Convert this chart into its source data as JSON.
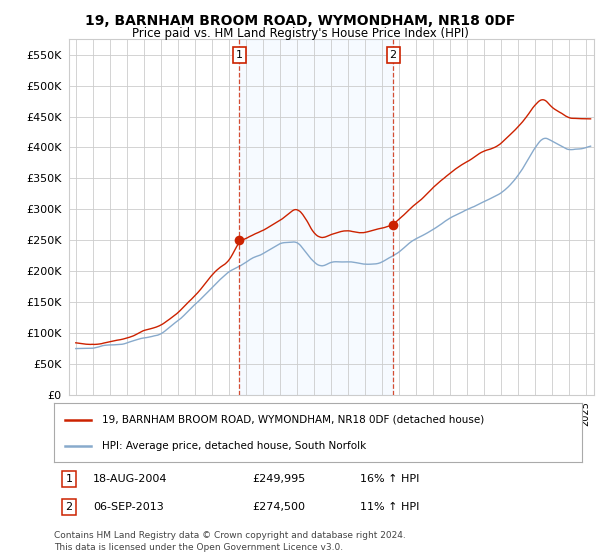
{
  "title": "19, BARNHAM BROOM ROAD, WYMONDHAM, NR18 0DF",
  "subtitle": "Price paid vs. HM Land Registry's House Price Index (HPI)",
  "ylim": [
    0,
    575000
  ],
  "xlim_start": 1994.6,
  "xlim_end": 2025.5,
  "legend_line1": "19, BARNHAM BROOM ROAD, WYMONDHAM, NR18 0DF (detached house)",
  "legend_line2": "HPI: Average price, detached house, South Norfolk",
  "annotation1_label": "1",
  "annotation1_date": "18-AUG-2004",
  "annotation1_price": "£249,995",
  "annotation1_hpi": "16% ↑ HPI",
  "annotation2_label": "2",
  "annotation2_date": "06-SEP-2013",
  "annotation2_price": "£274,500",
  "annotation2_hpi": "11% ↑ HPI",
  "footnote1": "Contains HM Land Registry data © Crown copyright and database right 2024.",
  "footnote2": "This data is licensed under the Open Government Licence v3.0.",
  "sale1_x": 2004.62,
  "sale1_y": 249995,
  "sale2_x": 2013.68,
  "sale2_y": 274500,
  "red_color": "#cc2200",
  "blue_color": "#88aacc",
  "shade_color": "#ddeeff",
  "grid_color": "#cccccc",
  "background_color": "#ffffff"
}
